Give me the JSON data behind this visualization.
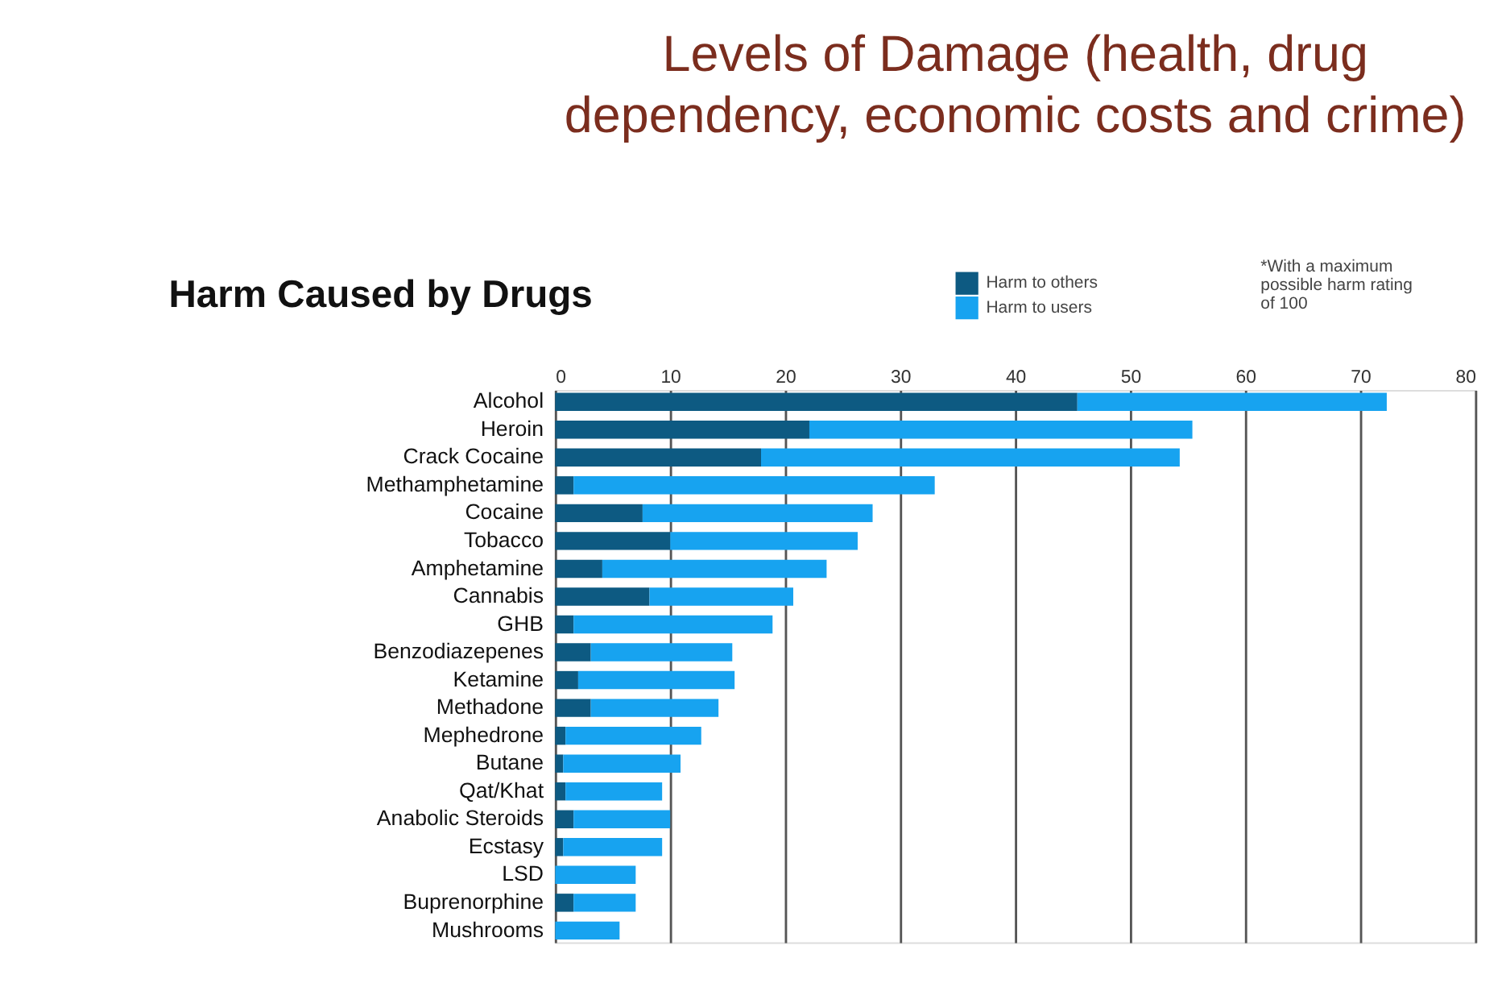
{
  "chart_data": {
    "type": "bar",
    "orientation": "horizontal",
    "stacked": true,
    "title": [
      "Levels of Damage (health, drug",
      "dependency, economic costs and crime)"
    ],
    "subtitle": "Harm Caused by Drugs",
    "annotations": [
      "*With a maximum possible harm rating of 100"
    ],
    "categories": [
      "Alcohol",
      "Heroin",
      "Crack Cocaine",
      "Methamphetamine",
      "Cocaine",
      "Tobacco",
      "Amphetamine",
      "Cannabis",
      "GHB",
      "Benzodiazepenes",
      "Ketamine",
      "Methadone",
      "Mephedrone",
      "Butane",
      "Qat/Khat",
      "Anabolic Steroids",
      "Ecstasy",
      "LSD",
      "Buprenorphine",
      "Mushrooms"
    ],
    "series": [
      {
        "name": "Harm to others",
        "color": "#0d5a82",
        "values": [
          45.4,
          22.1,
          17.9,
          1.6,
          7.6,
          10.0,
          4.1,
          8.2,
          1.6,
          3.1,
          2.0,
          3.1,
          0.9,
          0.7,
          0.9,
          1.6,
          0.7,
          0,
          1.6,
          0
        ]
      },
      {
        "name": "Harm to users",
        "color": "#17a3f0",
        "values": [
          26.9,
          33.3,
          36.4,
          31.4,
          20.0,
          16.3,
          19.5,
          12.5,
          17.3,
          12.3,
          13.6,
          11.1,
          11.8,
          10.2,
          8.4,
          8.4,
          8.6,
          7.0,
          5.4,
          5.6
        ]
      }
    ],
    "xlim": [
      0,
      80
    ],
    "xticks": [
      0,
      10,
      20,
      30,
      40,
      50,
      60,
      70,
      80
    ],
    "grid": "x",
    "legend": "top right"
  }
}
